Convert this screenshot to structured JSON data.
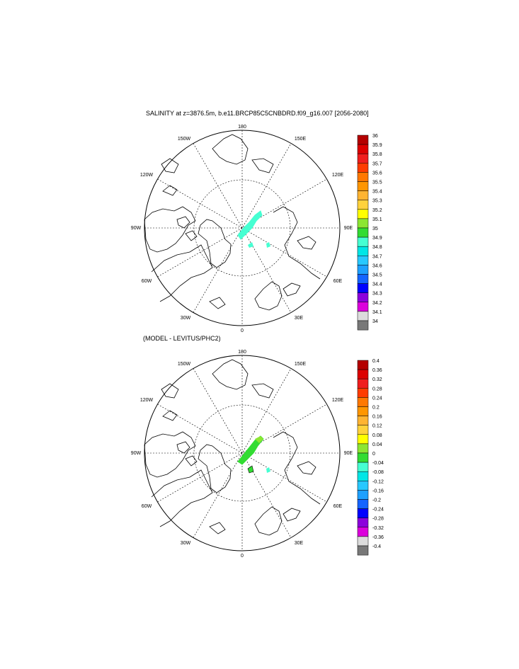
{
  "panel1": {
    "title": "SALINITY at z=3876.5m, b.e11.BRCP85C5CNBDRD.f09_g16.007 [2056-2080]",
    "lon_labels": [
      "180",
      "150E",
      "120E",
      "90E",
      "60E",
      "30E",
      "0",
      "30W",
      "60W",
      "90W",
      "120W",
      "150W"
    ],
    "colorbar": {
      "labels": [
        "36",
        "35.9",
        "35.8",
        "35.7",
        "35.6",
        "35.5",
        "35.4",
        "35.3",
        "35.2",
        "35.1",
        "35",
        "34.9",
        "34.8",
        "34.7",
        "34.6",
        "34.5",
        "34.4",
        "34.3",
        "34.2",
        "34.1",
        "34"
      ],
      "colors": [
        "#b40000",
        "#dc0000",
        "#f01e1e",
        "#ff3c00",
        "#ff7800",
        "#ff9600",
        "#ffb432",
        "#ffd23c",
        "#ffff00",
        "#8ce632",
        "#32dc32",
        "#46ffd2",
        "#00e6e6",
        "#28c8ff",
        "#1ea0ff",
        "#1464ff",
        "#0000ff",
        "#8c00dc",
        "#dc00dc",
        "#dcdcdc",
        "#787878"
      ]
    }
  },
  "panel2": {
    "title": "(MODEL - LEVITUS/PHC2)",
    "lon_labels": [
      "180",
      "150E",
      "120E",
      "90E",
      "60E",
      "30E",
      "0",
      "30W",
      "60W",
      "90W",
      "120W",
      "150W"
    ],
    "colorbar": {
      "labels": [
        "0.4",
        "0.36",
        "0.32",
        "0.28",
        "0.24",
        "0.2",
        "0.16",
        "0.12",
        "0.08",
        "0.04",
        "0",
        "-0.04",
        "-0.08",
        "-0.12",
        "-0.16",
        "-0.2",
        "-0.24",
        "-0.28",
        "-0.32",
        "-0.36",
        "-0.4"
      ],
      "colors": [
        "#b40000",
        "#dc0000",
        "#f01e1e",
        "#ff3c00",
        "#ff7800",
        "#ff9600",
        "#ffb432",
        "#ffd23c",
        "#ffff00",
        "#8ce632",
        "#32dc32",
        "#46ffd2",
        "#00e6e6",
        "#28c8ff",
        "#1ea0ff",
        "#1464ff",
        "#0000ff",
        "#8c00dc",
        "#dc00dc",
        "#dcdcdc",
        "#787878"
      ]
    }
  }
}
